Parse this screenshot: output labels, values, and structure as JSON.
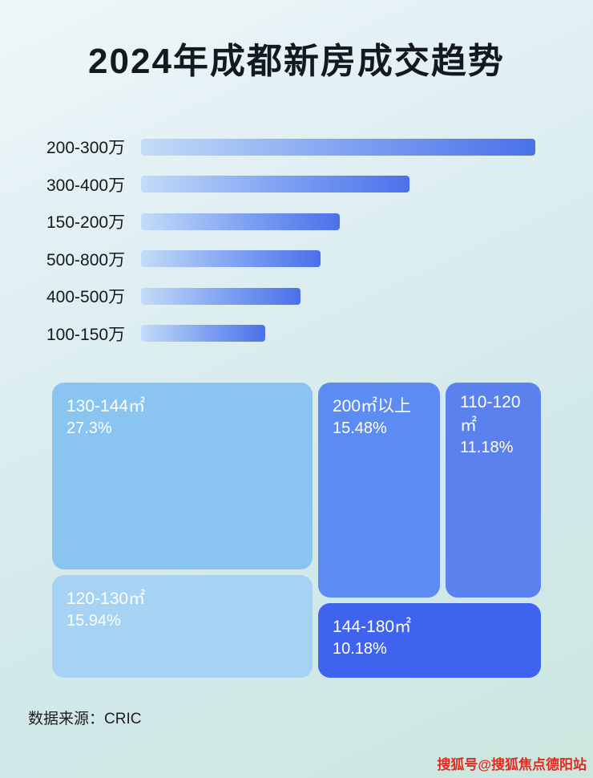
{
  "title": "2024年成都新房成交趋势",
  "chart_data": [
    {
      "type": "bar",
      "orientation": "horizontal",
      "categories": [
        "200-300万",
        "300-400万",
        "150-200万",
        "500-800万",
        "400-500万",
        "100-150万"
      ],
      "values": [
        100,
        68,
        50.5,
        45.5,
        40.5,
        31.5
      ],
      "values_unit": "relative bar length, % of longest bar (no numeric axis shown in image)",
      "legend": "none",
      "grid": false
    },
    {
      "type": "treemap",
      "items": [
        {
          "label": "130-144㎡",
          "value": 27.3,
          "display": "27.3%",
          "color": "#8ac5f1"
        },
        {
          "label": "120-130㎡",
          "value": 15.94,
          "display": "15.94%",
          "color": "#a6d2f3"
        },
        {
          "label": "200㎡以上",
          "value": 15.48,
          "display": "15.48%",
          "color": "#5c8cf1"
        },
        {
          "label": "110-120㎡",
          "value": 11.18,
          "display": "11.18%",
          "color": "#5a81ee"
        },
        {
          "label": "144-180㎡",
          "value": 10.18,
          "display": "10.18%",
          "color": "#3f63ee"
        }
      ]
    }
  ],
  "footer": {
    "source_label": "数据来源：CRIC"
  },
  "watermark": {
    "text": "搜狐号@搜狐焦点德阳站",
    "color": "#e02b20"
  },
  "colors": {
    "title": "#14181f",
    "bar_gradient_start": "#c3dcf7",
    "bar_gradient_end": "#4a71ea",
    "background": "#d9ecef"
  }
}
